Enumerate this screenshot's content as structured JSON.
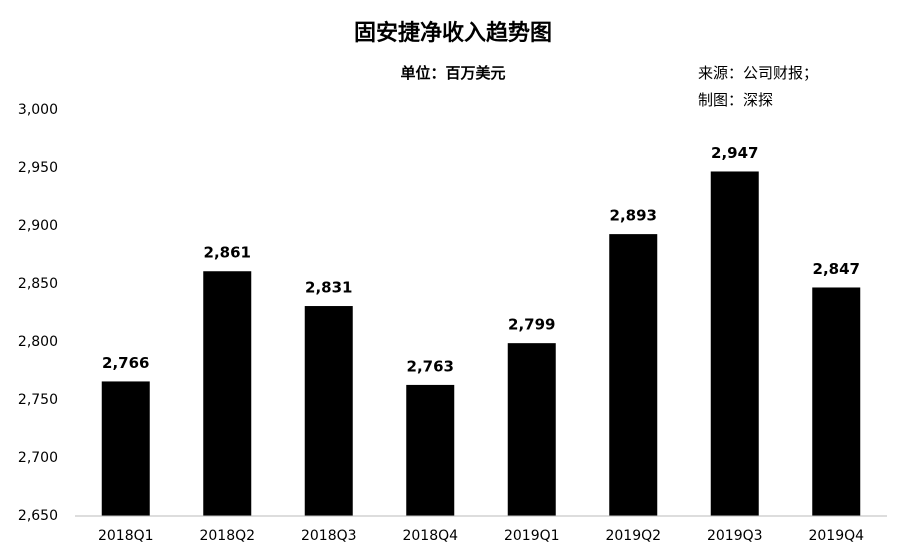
{
  "chart_data": {
    "type": "bar",
    "title": "固安捷净收入趋势图",
    "subtitle": "单位：百万美元",
    "annotations": [
      "来源：公司财报；",
      "制图：深探"
    ],
    "categories": [
      "2018Q1",
      "2018Q2",
      "2018Q3",
      "2018Q4",
      "2019Q1",
      "2019Q2",
      "2019Q3",
      "2019Q4"
    ],
    "values": [
      2766,
      2861,
      2831,
      2763,
      2799,
      2893,
      2947,
      2847
    ],
    "value_labels": [
      "2,766",
      "2,861",
      "2,831",
      "2,763",
      "2,799",
      "2,893",
      "2,947",
      "2,847"
    ],
    "color": "#000000",
    "ylim": [
      2650,
      3000
    ],
    "yticks": [
      {
        "value": 2650,
        "label": "2,650"
      },
      {
        "value": 2700,
        "label": "2,700"
      },
      {
        "value": 2750,
        "label": "2,750"
      },
      {
        "value": 2800,
        "label": "2,800"
      },
      {
        "value": 2850,
        "label": "2,850"
      },
      {
        "value": 2900,
        "label": "2,900"
      },
      {
        "value": 2950,
        "label": "2,950"
      },
      {
        "value": 3000,
        "label": "3,000"
      }
    ],
    "grid": false
  }
}
